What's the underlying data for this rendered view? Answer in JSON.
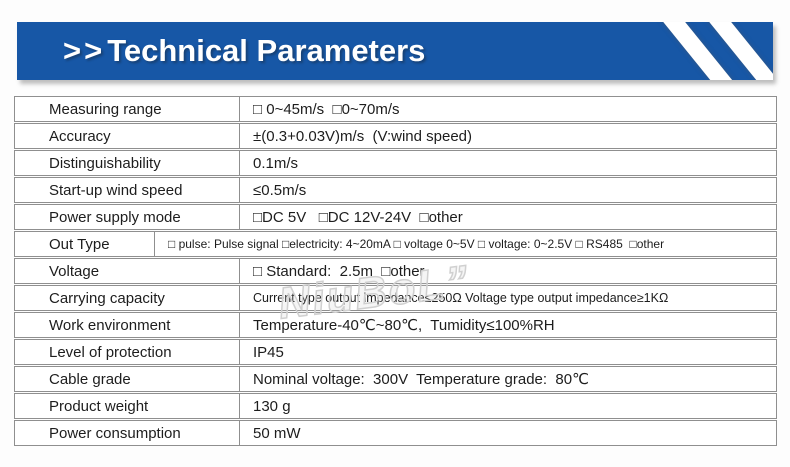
{
  "banner": {
    "prefix": ">>",
    "title": "Technical Parameters",
    "color": "#1757a6"
  },
  "watermark": {
    "text": "NiuBoL”"
  },
  "table": {
    "rows": [
      {
        "label": "Measuring range",
        "value": "□ 0~45m/s  □0~70m/s"
      },
      {
        "label": "Accuracy",
        "value": "±(0.3+0.03V)m/s  (V:wind speed)"
      },
      {
        "label": "Distinguishability",
        "value": "0.1m/s"
      },
      {
        "label": "Start-up wind speed",
        "value": "≤0.5m/s"
      },
      {
        "label": "Power supply mode",
        "value": "□DC 5V   □DC 12V-24V  □other"
      },
      {
        "label": "Out Type",
        "value": "□ pulse: Pulse signal □electricity: 4~20mA □ voltage 0~5V □ voltage: 0~2.5V □ RS485  □other",
        "narrow": true,
        "size": "xs"
      },
      {
        "label": "Voltage",
        "value": "□ Standard:  2.5m  □other"
      },
      {
        "label": "Carrying capacity",
        "value": "Current type output impedance≤250Ω Voltage type output impedance≥1KΩ",
        "size": "s"
      },
      {
        "label": "Work environment",
        "value": "Temperature-40℃~80℃,  Tumidity≤100%RH"
      },
      {
        "label": "Level of protection",
        "value": "IP45"
      },
      {
        "label": "Cable grade",
        "value": "Nominal voltage:  300V  Temperature grade:  80℃"
      },
      {
        "label": "Product weight",
        "value": "130 g"
      },
      {
        "label": "Power consumption",
        "value": "50 mW"
      }
    ]
  }
}
